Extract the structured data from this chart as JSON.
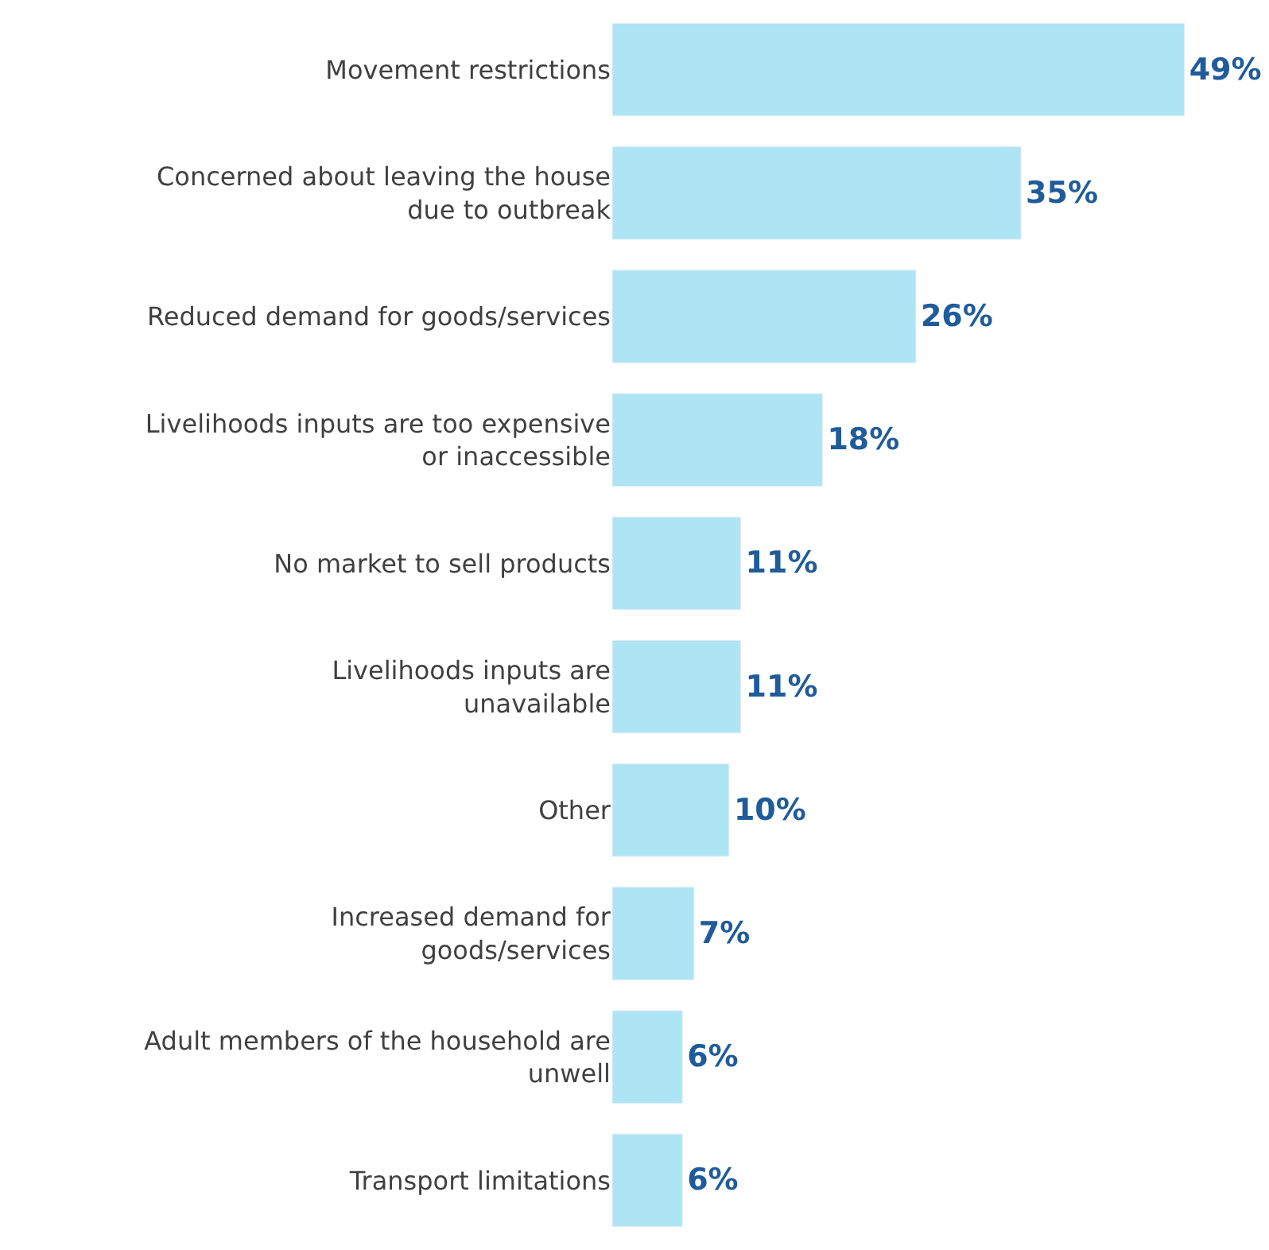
{
  "chart_data": {
    "type": "bar",
    "orientation": "horizontal",
    "categories": [
      "Movement restrictions",
      "Concerned about leaving the house\ndue to outbreak",
      "Reduced demand for goods/services",
      "Livelihoods inputs are too expensive\nor inaccessible",
      "No market to sell products",
      "Livelihoods inputs are\nunavailable",
      "Other",
      "Increased demand for\ngoods/services",
      "Adult members of the household are\nunwell",
      "Transport limitations"
    ],
    "values": [
      49,
      35,
      26,
      18,
      11,
      11,
      10,
      7,
      6,
      6
    ],
    "value_labels": [
      "49%",
      "35%",
      "26%",
      "18%",
      "11%",
      "11%",
      "10%",
      "7%",
      "6%",
      "6%"
    ],
    "color": "#ade5f5"
  }
}
